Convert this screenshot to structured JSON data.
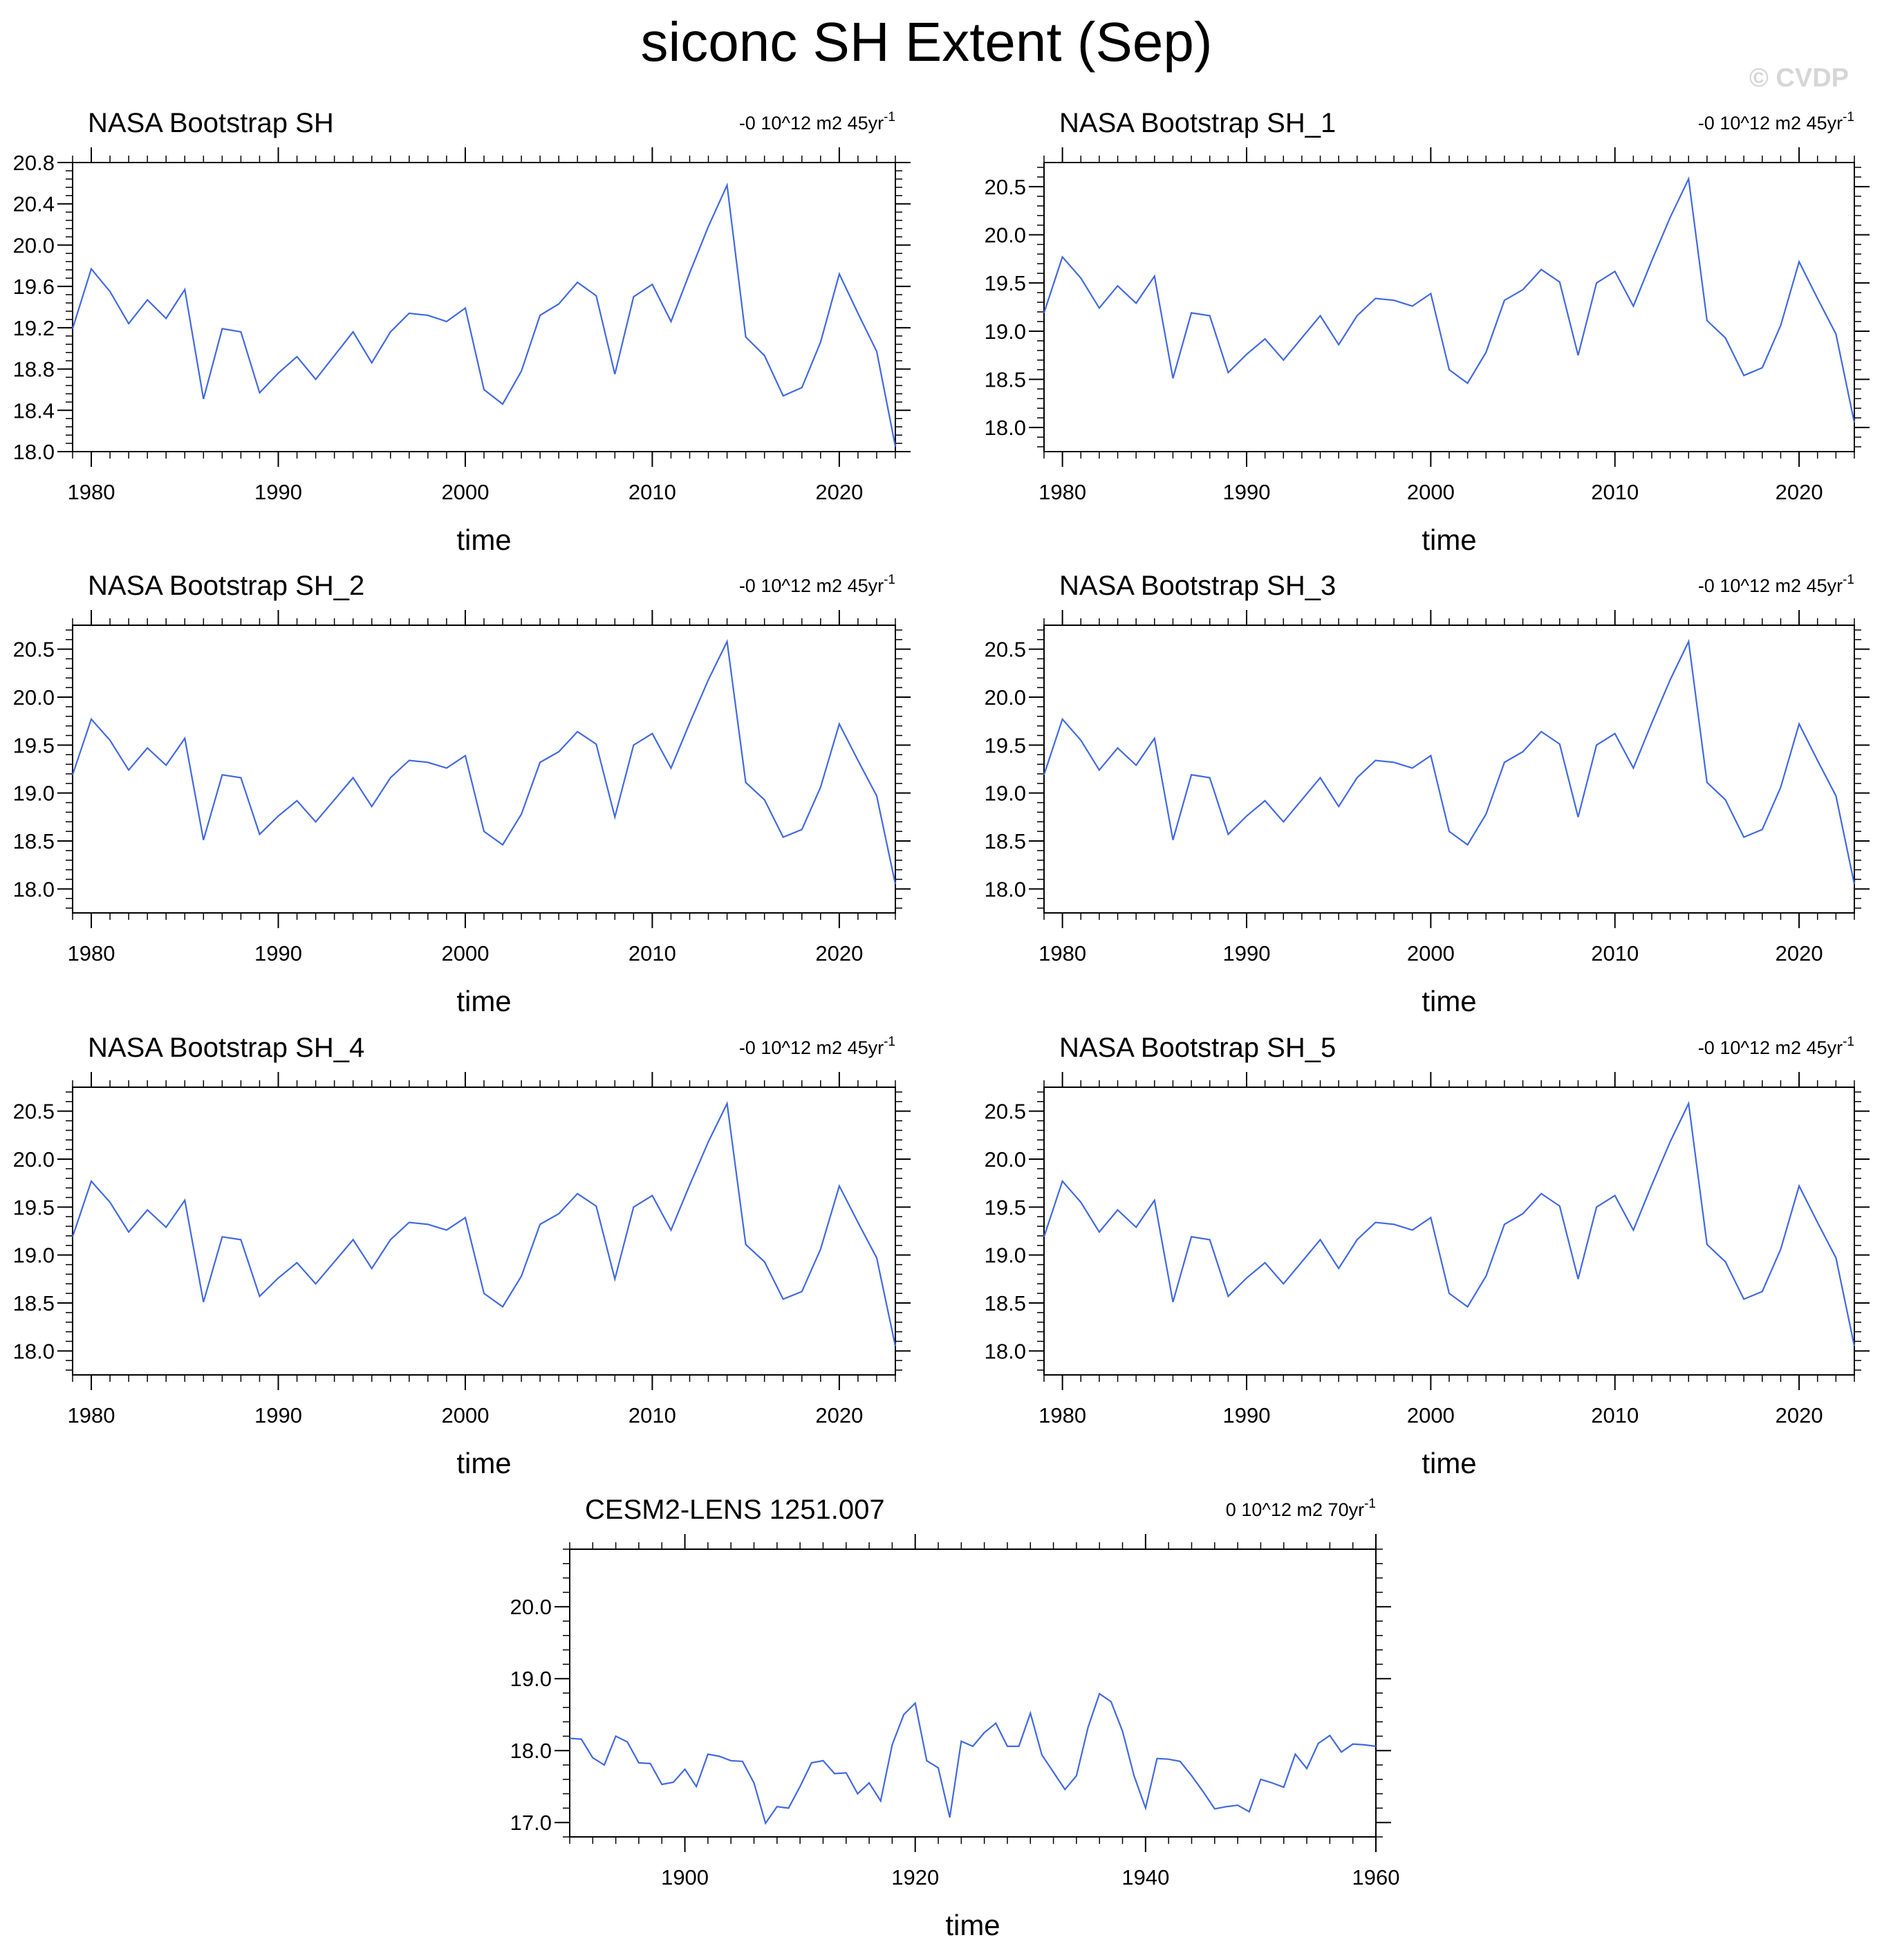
{
  "page": {
    "title": "siconc SH Extent (Sep)",
    "watermark": "© CVDP",
    "line_color": "#4169E1"
  },
  "chart_data": [
    {
      "type": "line",
      "title": "NASA Bootstrap SH",
      "trend_value": "-0 10^12 m2 45yr",
      "trend_exp": "-1",
      "xlabel": "time",
      "ylabel": "",
      "xlim": [
        1979,
        2023
      ],
      "ylim": [
        18.0,
        20.8
      ],
      "xticks": [
        1980,
        1990,
        2000,
        2010,
        2020
      ],
      "yticks": [
        "18.0",
        "18.4",
        "18.8",
        "19.2",
        "19.6",
        "20.0",
        "20.4",
        "20.8"
      ],
      "x": [
        1979,
        1980,
        1981,
        1982,
        1983,
        1984,
        1985,
        1986,
        1987,
        1988,
        1989,
        1990,
        1991,
        1992,
        1993,
        1994,
        1995,
        1996,
        1997,
        1998,
        1999,
        2000,
        2001,
        2002,
        2003,
        2004,
        2005,
        2006,
        2007,
        2008,
        2009,
        2010,
        2011,
        2012,
        2013,
        2014,
        2015,
        2016,
        2017,
        2018,
        2019,
        2020,
        2021,
        2022,
        2023
      ],
      "series": [
        {
          "values": [
            19.19,
            19.77,
            19.55,
            19.24,
            19.47,
            19.29,
            19.57,
            18.51,
            19.19,
            19.16,
            18.57,
            18.76,
            18.92,
            18.7,
            18.93,
            19.16,
            18.86,
            19.16,
            19.34,
            19.32,
            19.26,
            19.39,
            18.6,
            18.46,
            18.78,
            19.32,
            19.43,
            19.64,
            19.51,
            18.75,
            19.5,
            19.62,
            19.26,
            19.73,
            20.18,
            20.58,
            19.11,
            18.93,
            18.54,
            18.62,
            19.06,
            19.72,
            19.34,
            18.97,
            18.05
          ]
        }
      ]
    },
    {
      "type": "line",
      "title": "NASA Bootstrap SH_1",
      "trend_value": "-0 10^12 m2 45yr",
      "trend_exp": "-1",
      "xlabel": "time",
      "ylabel": "",
      "xlim": [
        1979,
        2023
      ],
      "ylim": [
        17.75,
        20.75
      ],
      "xticks": [
        1980,
        1990,
        2000,
        2010,
        2020
      ],
      "yticks": [
        "18.0",
        "18.5",
        "19.0",
        "19.5",
        "20.0",
        "20.5"
      ],
      "x": [
        1979,
        1980,
        1981,
        1982,
        1983,
        1984,
        1985,
        1986,
        1987,
        1988,
        1989,
        1990,
        1991,
        1992,
        1993,
        1994,
        1995,
        1996,
        1997,
        1998,
        1999,
        2000,
        2001,
        2002,
        2003,
        2004,
        2005,
        2006,
        2007,
        2008,
        2009,
        2010,
        2011,
        2012,
        2013,
        2014,
        2015,
        2016,
        2017,
        2018,
        2019,
        2020,
        2021,
        2022,
        2023
      ],
      "series": [
        {
          "values": [
            19.19,
            19.77,
            19.55,
            19.24,
            19.47,
            19.29,
            19.57,
            18.51,
            19.19,
            19.16,
            18.57,
            18.76,
            18.92,
            18.7,
            18.93,
            19.16,
            18.86,
            19.16,
            19.34,
            19.32,
            19.26,
            19.39,
            18.6,
            18.46,
            18.78,
            19.32,
            19.43,
            19.64,
            19.51,
            18.75,
            19.5,
            19.62,
            19.26,
            19.73,
            20.18,
            20.58,
            19.11,
            18.93,
            18.54,
            18.62,
            19.06,
            19.72,
            19.34,
            18.97,
            18.05
          ]
        }
      ]
    },
    {
      "type": "line",
      "title": "NASA Bootstrap SH_2",
      "trend_value": "-0 10^12 m2 45yr",
      "trend_exp": "-1",
      "xlabel": "time",
      "ylabel": "",
      "xlim": [
        1979,
        2023
      ],
      "ylim": [
        17.75,
        20.75
      ],
      "xticks": [
        1980,
        1990,
        2000,
        2010,
        2020
      ],
      "yticks": [
        "18.0",
        "18.5",
        "19.0",
        "19.5",
        "20.0",
        "20.5"
      ],
      "x": [
        1979,
        1980,
        1981,
        1982,
        1983,
        1984,
        1985,
        1986,
        1987,
        1988,
        1989,
        1990,
        1991,
        1992,
        1993,
        1994,
        1995,
        1996,
        1997,
        1998,
        1999,
        2000,
        2001,
        2002,
        2003,
        2004,
        2005,
        2006,
        2007,
        2008,
        2009,
        2010,
        2011,
        2012,
        2013,
        2014,
        2015,
        2016,
        2017,
        2018,
        2019,
        2020,
        2021,
        2022,
        2023
      ],
      "series": [
        {
          "values": [
            19.19,
            19.77,
            19.55,
            19.24,
            19.47,
            19.29,
            19.57,
            18.51,
            19.19,
            19.16,
            18.57,
            18.76,
            18.92,
            18.7,
            18.93,
            19.16,
            18.86,
            19.16,
            19.34,
            19.32,
            19.26,
            19.39,
            18.6,
            18.46,
            18.78,
            19.32,
            19.43,
            19.64,
            19.51,
            18.75,
            19.5,
            19.62,
            19.26,
            19.73,
            20.18,
            20.58,
            19.11,
            18.93,
            18.54,
            18.62,
            19.06,
            19.72,
            19.34,
            18.97,
            18.05
          ]
        }
      ]
    },
    {
      "type": "line",
      "title": "NASA Bootstrap SH_3",
      "trend_value": "-0 10^12 m2 45yr",
      "trend_exp": "-1",
      "xlabel": "time",
      "ylabel": "",
      "xlim": [
        1979,
        2023
      ],
      "ylim": [
        17.75,
        20.75
      ],
      "xticks": [
        1980,
        1990,
        2000,
        2010,
        2020
      ],
      "yticks": [
        "18.0",
        "18.5",
        "19.0",
        "19.5",
        "20.0",
        "20.5"
      ],
      "x": [
        1979,
        1980,
        1981,
        1982,
        1983,
        1984,
        1985,
        1986,
        1987,
        1988,
        1989,
        1990,
        1991,
        1992,
        1993,
        1994,
        1995,
        1996,
        1997,
        1998,
        1999,
        2000,
        2001,
        2002,
        2003,
        2004,
        2005,
        2006,
        2007,
        2008,
        2009,
        2010,
        2011,
        2012,
        2013,
        2014,
        2015,
        2016,
        2017,
        2018,
        2019,
        2020,
        2021,
        2022,
        2023
      ],
      "series": [
        {
          "values": [
            19.19,
            19.77,
            19.55,
            19.24,
            19.47,
            19.29,
            19.57,
            18.51,
            19.19,
            19.16,
            18.57,
            18.76,
            18.92,
            18.7,
            18.93,
            19.16,
            18.86,
            19.16,
            19.34,
            19.32,
            19.26,
            19.39,
            18.6,
            18.46,
            18.78,
            19.32,
            19.43,
            19.64,
            19.51,
            18.75,
            19.5,
            19.62,
            19.26,
            19.73,
            20.18,
            20.58,
            19.11,
            18.93,
            18.54,
            18.62,
            19.06,
            19.72,
            19.34,
            18.97,
            18.05
          ]
        }
      ]
    },
    {
      "type": "line",
      "title": "NASA Bootstrap SH_4",
      "trend_value": "-0 10^12 m2 45yr",
      "trend_exp": "-1",
      "xlabel": "time",
      "ylabel": "",
      "xlim": [
        1979,
        2023
      ],
      "ylim": [
        17.75,
        20.75
      ],
      "xticks": [
        1980,
        1990,
        2000,
        2010,
        2020
      ],
      "yticks": [
        "18.0",
        "18.5",
        "19.0",
        "19.5",
        "20.0",
        "20.5"
      ],
      "x": [
        1979,
        1980,
        1981,
        1982,
        1983,
        1984,
        1985,
        1986,
        1987,
        1988,
        1989,
        1990,
        1991,
        1992,
        1993,
        1994,
        1995,
        1996,
        1997,
        1998,
        1999,
        2000,
        2001,
        2002,
        2003,
        2004,
        2005,
        2006,
        2007,
        2008,
        2009,
        2010,
        2011,
        2012,
        2013,
        2014,
        2015,
        2016,
        2017,
        2018,
        2019,
        2020,
        2021,
        2022,
        2023
      ],
      "series": [
        {
          "values": [
            19.19,
            19.77,
            19.55,
            19.24,
            19.47,
            19.29,
            19.57,
            18.51,
            19.19,
            19.16,
            18.57,
            18.76,
            18.92,
            18.7,
            18.93,
            19.16,
            18.86,
            19.16,
            19.34,
            19.32,
            19.26,
            19.39,
            18.6,
            18.46,
            18.78,
            19.32,
            19.43,
            19.64,
            19.51,
            18.75,
            19.5,
            19.62,
            19.26,
            19.73,
            20.18,
            20.58,
            19.11,
            18.93,
            18.54,
            18.62,
            19.06,
            19.72,
            19.34,
            18.97,
            18.05
          ]
        }
      ]
    },
    {
      "type": "line",
      "title": "NASA Bootstrap SH_5",
      "trend_value": "-0 10^12 m2 45yr",
      "trend_exp": "-1",
      "xlabel": "time",
      "ylabel": "",
      "xlim": [
        1979,
        2023
      ],
      "ylim": [
        17.75,
        20.75
      ],
      "xticks": [
        1980,
        1990,
        2000,
        2010,
        2020
      ],
      "yticks": [
        "18.0",
        "18.5",
        "19.0",
        "19.5",
        "20.0",
        "20.5"
      ],
      "x": [
        1979,
        1980,
        1981,
        1982,
        1983,
        1984,
        1985,
        1986,
        1987,
        1988,
        1989,
        1990,
        1991,
        1992,
        1993,
        1994,
        1995,
        1996,
        1997,
        1998,
        1999,
        2000,
        2001,
        2002,
        2003,
        2004,
        2005,
        2006,
        2007,
        2008,
        2009,
        2010,
        2011,
        2012,
        2013,
        2014,
        2015,
        2016,
        2017,
        2018,
        2019,
        2020,
        2021,
        2022,
        2023
      ],
      "series": [
        {
          "values": [
            19.19,
            19.77,
            19.55,
            19.24,
            19.47,
            19.29,
            19.57,
            18.51,
            19.19,
            19.16,
            18.57,
            18.76,
            18.92,
            18.7,
            18.93,
            19.16,
            18.86,
            19.16,
            19.34,
            19.32,
            19.26,
            19.39,
            18.6,
            18.46,
            18.78,
            19.32,
            19.43,
            19.64,
            19.51,
            18.75,
            19.5,
            19.62,
            19.26,
            19.73,
            20.18,
            20.58,
            19.11,
            18.93,
            18.54,
            18.62,
            19.06,
            19.72,
            19.34,
            18.97,
            18.05
          ]
        }
      ]
    },
    {
      "type": "line",
      "title": "CESM2-LENS 1251.007",
      "trend_value": "0 10^12 m2 70yr",
      "trend_exp": "-1",
      "xlabel": "time",
      "ylabel": "",
      "xlim": [
        1890,
        1960
      ],
      "ylim": [
        16.8,
        20.8
      ],
      "xticks": [
        1900,
        1920,
        1940,
        1960
      ],
      "yticks": [
        "17.0",
        "18.0",
        "19.0",
        "20.0"
      ],
      "x": [
        1890,
        1891,
        1892,
        1893,
        1894,
        1895,
        1896,
        1897,
        1898,
        1899,
        1900,
        1901,
        1902,
        1903,
        1904,
        1905,
        1906,
        1907,
        1908,
        1909,
        1910,
        1911,
        1912,
        1913,
        1914,
        1915,
        1916,
        1917,
        1918,
        1919,
        1920,
        1921,
        1922,
        1923,
        1924,
        1925,
        1926,
        1927,
        1928,
        1929,
        1930,
        1931,
        1932,
        1933,
        1934,
        1935,
        1936,
        1937,
        1938,
        1939,
        1940,
        1941,
        1942,
        1943,
        1944,
        1945,
        1946,
        1947,
        1948,
        1949,
        1950,
        1951,
        1952,
        1953,
        1954,
        1955,
        1956,
        1957,
        1958,
        1959,
        1960
      ],
      "series": [
        {
          "values": [
            18.17,
            18.16,
            17.9,
            17.8,
            18.2,
            18.12,
            17.83,
            17.82,
            17.53,
            17.56,
            17.74,
            17.5,
            17.95,
            17.92,
            17.86,
            17.85,
            17.55,
            16.99,
            17.22,
            17.2,
            17.5,
            17.83,
            17.86,
            17.68,
            17.69,
            17.4,
            17.55,
            17.3,
            18.08,
            18.5,
            18.66,
            17.86,
            17.76,
            17.07,
            18.13,
            18.06,
            18.25,
            18.38,
            18.06,
            18.06,
            18.52,
            17.94,
            17.7,
            17.46,
            17.65,
            18.32,
            18.79,
            18.68,
            18.27,
            17.65,
            17.2,
            17.89,
            17.88,
            17.85,
            17.65,
            17.43,
            17.19,
            17.22,
            17.24,
            17.15,
            17.6,
            17.55,
            17.49,
            17.95,
            17.75,
            18.1,
            18.21,
            17.98,
            18.09,
            18.08,
            18.06
          ]
        }
      ]
    }
  ]
}
